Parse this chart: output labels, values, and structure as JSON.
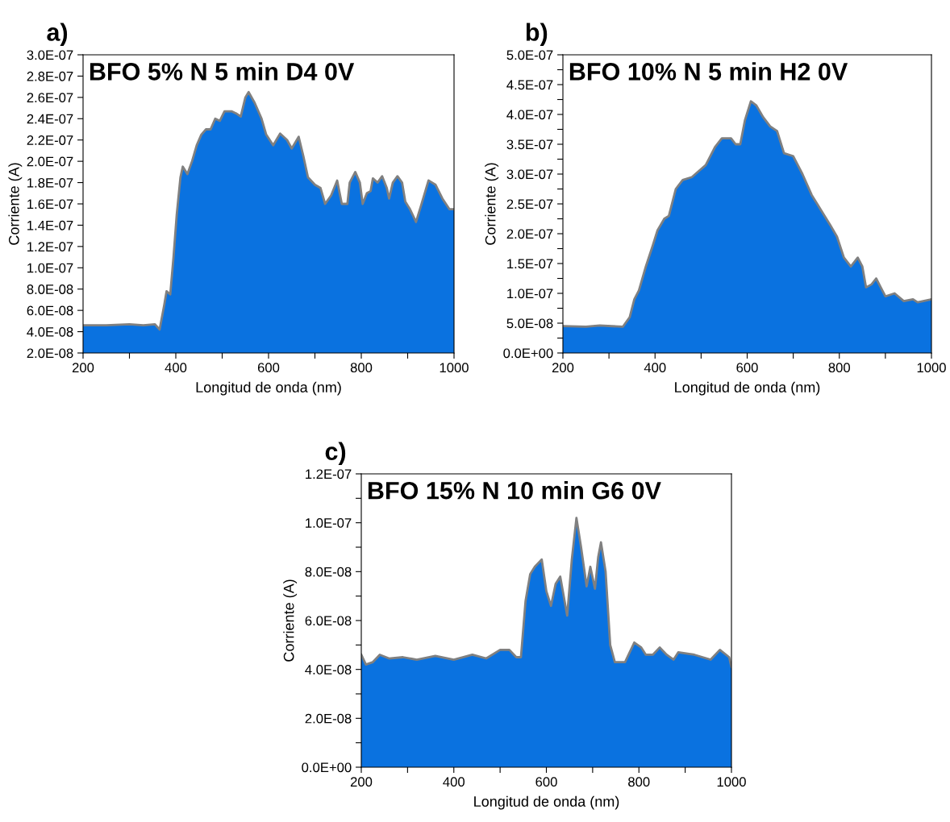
{
  "chart_data": [
    {
      "type": "area",
      "title": "a)",
      "xlabel": "Longitud de onda (nm)",
      "ylabel": "Corriente (A)",
      "annotations": [
        "BFO 5% N 5 min D4 0V"
      ],
      "x": [
        200,
        250,
        300,
        330,
        355,
        365,
        375,
        380,
        388,
        395,
        402,
        410,
        415,
        425,
        435,
        445,
        455,
        465,
        475,
        485,
        495,
        505,
        520,
        530,
        540,
        550,
        557,
        570,
        585,
        595,
        610,
        625,
        640,
        650,
        665,
        675,
        685,
        700,
        712,
        722,
        735,
        748,
        758,
        770,
        775,
        787,
        797,
        803,
        812,
        820,
        825,
        835,
        845,
        855,
        860,
        868,
        878,
        888,
        895,
        905,
        918,
        930,
        945,
        960,
        975,
        990,
        1000
      ],
      "series": [
        {
          "color": "#0a72e0",
          "values": [
            4.6e-08,
            4.6e-08,
            4.7e-08,
            4.6e-08,
            4.7e-08,
            4.2e-08,
            6.5e-08,
            7.8e-08,
            7.5e-08,
            1.1e-07,
            1.5e-07,
            1.85e-07,
            1.95e-07,
            1.88e-07,
            2e-07,
            2.15e-07,
            2.25e-07,
            2.3e-07,
            2.3e-07,
            2.4e-07,
            2.38e-07,
            2.47e-07,
            2.47e-07,
            2.45e-07,
            2.42e-07,
            2.6e-07,
            2.65e-07,
            2.55e-07,
            2.4e-07,
            2.25e-07,
            2.15e-07,
            2.26e-07,
            2.2e-07,
            2.12e-07,
            2.23e-07,
            2.05e-07,
            1.85e-07,
            1.78e-07,
            1.75e-07,
            1.6e-07,
            1.68e-07,
            1.82e-07,
            1.6e-07,
            1.6e-07,
            1.8e-07,
            1.9e-07,
            1.8e-07,
            1.6e-07,
            1.7e-07,
            1.72e-07,
            1.84e-07,
            1.8e-07,
            1.86e-07,
            1.75e-07,
            1.65e-07,
            1.8e-07,
            1.86e-07,
            1.8e-07,
            1.62e-07,
            1.55e-07,
            1.43e-07,
            1.6e-07,
            1.82e-07,
            1.78e-07,
            1.65e-07,
            1.55e-07,
            1.55e-07
          ]
        }
      ],
      "xlim": [
        200,
        1000
      ],
      "xticks": [
        200,
        {
          "value": 300,
          "label": null
        },
        400,
        {
          "value": 500,
          "label": null
        },
        600,
        {
          "value": 700,
          "label": null
        },
        800,
        {
          "value": 900,
          "label": null
        },
        1000
      ],
      "ylim": [
        2e-08,
        3e-07
      ],
      "yticks": [
        {
          "value": 2e-08,
          "label": "2.0E-08"
        },
        {
          "value": 4e-08,
          "label": "4.0E-08"
        },
        {
          "value": 6e-08,
          "label": "6.0E-08"
        },
        {
          "value": 8e-08,
          "label": "8.0E-08"
        },
        {
          "value": 1e-07,
          "label": "1.0E-07"
        },
        {
          "value": 1.2e-07,
          "label": "1.2E-07"
        },
        {
          "value": 1.4e-07,
          "label": "1.4E-07"
        },
        {
          "value": 1.6e-07,
          "label": "1.6E-07"
        },
        {
          "value": 1.8e-07,
          "label": "1.8E-07"
        },
        {
          "value": 2e-07,
          "label": "2.0E-07"
        },
        {
          "value": 2.2e-07,
          "label": "2.2E-07"
        },
        {
          "value": 2.4e-07,
          "label": "2.4E-07"
        },
        {
          "value": 2.6e-07,
          "label": "2.6E-07"
        },
        {
          "value": 2.8e-07,
          "label": "2.8E-07"
        },
        {
          "value": 3e-07,
          "label": "3.0E-07"
        }
      ],
      "grid": false,
      "legend": false
    },
    {
      "type": "area",
      "title": "b)",
      "xlabel": "Longitud de onda (nm)",
      "ylabel": "Corriente (A)",
      "annotations": [
        "BFO 10% N 5 min H2 0V"
      ],
      "x": [
        200,
        250,
        280,
        330,
        345,
        355,
        365,
        380,
        395,
        405,
        420,
        430,
        445,
        460,
        480,
        495,
        510,
        530,
        545,
        565,
        575,
        585,
        595,
        608,
        620,
        635,
        650,
        665,
        680,
        700,
        720,
        740,
        760,
        780,
        795,
        810,
        825,
        840,
        850,
        858,
        870,
        880,
        890,
        900,
        920,
        940,
        960,
        970,
        1000
      ],
      "series": [
        {
          "color": "#0a72e0",
          "values": [
            4.5e-08,
            4.4e-08,
            4.6e-08,
            4.4e-08,
            6e-08,
            9e-08,
            1.05e-07,
            1.45e-07,
            1.8e-07,
            2.05e-07,
            2.25e-07,
            2.3e-07,
            2.75e-07,
            2.9e-07,
            2.95e-07,
            3.05e-07,
            3.15e-07,
            3.45e-07,
            3.6e-07,
            3.6e-07,
            3.5e-07,
            3.5e-07,
            3.9e-07,
            4.22e-07,
            4.15e-07,
            3.95e-07,
            3.8e-07,
            3.72e-07,
            3.35e-07,
            3.3e-07,
            3e-07,
            2.65e-07,
            2.4e-07,
            2.15e-07,
            1.95e-07,
            1.6e-07,
            1.45e-07,
            1.6e-07,
            1.45e-07,
            1.1e-07,
            1.15e-07,
            1.25e-07,
            1.1e-07,
            9.5e-08,
            1e-07,
            8.7e-08,
            9e-08,
            8.5e-08,
            9e-08
          ]
        }
      ],
      "xlim": [
        200,
        1000
      ],
      "xticks": [
        200,
        {
          "value": 300,
          "label": null
        },
        400,
        {
          "value": 500,
          "label": null
        },
        600,
        {
          "value": 700,
          "label": null
        },
        800,
        {
          "value": 900,
          "label": null
        },
        1000
      ],
      "ylim": [
        0,
        5e-07
      ],
      "yticks": [
        {
          "value": 0,
          "label": "0.0E+00"
        },
        {
          "value": 2.5e-08,
          "label": null
        },
        {
          "value": 5e-08,
          "label": "5.0E-08"
        },
        {
          "value": 7.5e-08,
          "label": null
        },
        {
          "value": 1e-07,
          "label": "1.0E-07"
        },
        {
          "value": 1.25e-07,
          "label": null
        },
        {
          "value": 1.5e-07,
          "label": "1.5E-07"
        },
        {
          "value": 1.75e-07,
          "label": null
        },
        {
          "value": 2e-07,
          "label": "2.0E-07"
        },
        {
          "value": 2.25e-07,
          "label": null
        },
        {
          "value": 2.5e-07,
          "label": "2.5E-07"
        },
        {
          "value": 2.75e-07,
          "label": null
        },
        {
          "value": 3e-07,
          "label": "3.0E-07"
        },
        {
          "value": 3.25e-07,
          "label": null
        },
        {
          "value": 3.5e-07,
          "label": "3.5E-07"
        },
        {
          "value": 3.75e-07,
          "label": null
        },
        {
          "value": 4e-07,
          "label": "4.0E-07"
        },
        {
          "value": 4.25e-07,
          "label": null
        },
        {
          "value": 4.5e-07,
          "label": "4.5E-07"
        },
        {
          "value": 4.75e-07,
          "label": null
        },
        {
          "value": 5e-07,
          "label": "5.0E-07"
        }
      ],
      "grid": false,
      "legend": false
    },
    {
      "type": "area",
      "title": "c)",
      "xlabel": "Longitud de onda (nm)",
      "ylabel": "Corriente (A)",
      "annotations": [
        "BFO 15% N 10 min G6 0V"
      ],
      "x": [
        200,
        210,
        225,
        240,
        260,
        290,
        320,
        360,
        400,
        440,
        470,
        500,
        520,
        535,
        545,
        555,
        565,
        575,
        590,
        600,
        610,
        620,
        630,
        645,
        655,
        665,
        675,
        687,
        695,
        705,
        712,
        718,
        728,
        738,
        748,
        770,
        790,
        805,
        815,
        830,
        845,
        860,
        875,
        885,
        920,
        955,
        975,
        995,
        1000
      ],
      "series": [
        {
          "color": "#0a72e0",
          "values": [
            4.6e-08,
            4.2e-08,
            4.3e-08,
            4.6e-08,
            4.45e-08,
            4.5e-08,
            4.4e-08,
            4.55e-08,
            4.4e-08,
            4.6e-08,
            4.45e-08,
            4.8e-08,
            4.8e-08,
            4.5e-08,
            4.5e-08,
            6.8e-08,
            7.9e-08,
            8.2e-08,
            8.5e-08,
            7.2e-08,
            6.6e-08,
            7.5e-08,
            7.8e-08,
            6.2e-08,
            8.5e-08,
            1.02e-07,
            9e-08,
            7.4e-08,
            8.2e-08,
            7.3e-08,
            8.6e-08,
            9.2e-08,
            8e-08,
            5e-08,
            4.3e-08,
            4.3e-08,
            5.1e-08,
            4.9e-08,
            4.6e-08,
            4.6e-08,
            4.9e-08,
            4.6e-08,
            4.4e-08,
            4.7e-08,
            4.6e-08,
            4.4e-08,
            4.8e-08,
            4.5e-08,
            4.1e-08
          ]
        }
      ],
      "xlim": [
        200,
        1000
      ],
      "xticks": [
        200,
        {
          "value": 300,
          "label": null
        },
        400,
        {
          "value": 500,
          "label": null
        },
        600,
        {
          "value": 700,
          "label": null
        },
        800,
        {
          "value": 900,
          "label": null
        },
        1000
      ],
      "ylim": [
        0,
        1.2e-07
      ],
      "yticks": [
        {
          "value": 0,
          "label": "0.0E+00"
        },
        {
          "value": 1e-08,
          "label": null
        },
        {
          "value": 2e-08,
          "label": "2.0E-08"
        },
        {
          "value": 3e-08,
          "label": null
        },
        {
          "value": 4e-08,
          "label": "4.0E-08"
        },
        {
          "value": 5e-08,
          "label": null
        },
        {
          "value": 6e-08,
          "label": "6.0E-08"
        },
        {
          "value": 7e-08,
          "label": null
        },
        {
          "value": 8e-08,
          "label": "8.0E-08"
        },
        {
          "value": 9e-08,
          "label": null
        },
        {
          "value": 1e-07,
          "label": "1.0E-07"
        },
        {
          "value": 1.1e-07,
          "label": null
        },
        {
          "value": 1.2e-07,
          "label": "1.2E-07"
        }
      ],
      "grid": false,
      "legend": false
    }
  ]
}
